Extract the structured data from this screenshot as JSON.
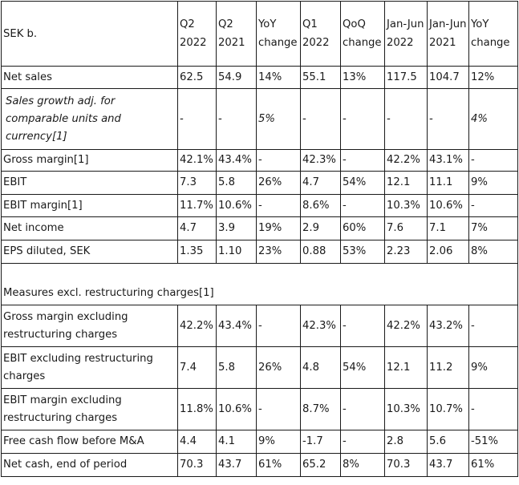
{
  "header": {
    "label": "SEK b.",
    "cols": [
      "Q2 2022",
      "Q2 2021",
      "YoY change",
      "Q1 2022",
      "QoQ change",
      "Jan-Jun 2022",
      "Jan-Jun 2021",
      "YoY change"
    ]
  },
  "rows": [
    {
      "label": "Net sales",
      "values": [
        "62.5",
        "54.9",
        "14%",
        "55.1",
        "13%",
        "117.5",
        "104.7",
        "12%"
      ]
    },
    {
      "label": "Sales growth adj. for comparable units and currency[1]",
      "italic": true,
      "values": [
        "-",
        "-",
        "5%",
        "-",
        "-",
        "-",
        "-",
        "4%"
      ]
    },
    {
      "label": "Gross margin[1]",
      "values": [
        "42.1%",
        "43.4%",
        "-",
        "42.3%",
        "-",
        "42.2%",
        "43.1%",
        "-"
      ]
    },
    {
      "label": "EBIT",
      "values": [
        "7.3",
        "5.8",
        "26%",
        "4.7",
        "54%",
        "12.1",
        "11.1",
        "9%"
      ]
    },
    {
      "label": "EBIT margin[1]",
      "values": [
        "11.7%",
        "10.6%",
        "-",
        "8.6%",
        "-",
        "10.3%",
        "10.6%",
        "-"
      ]
    },
    {
      "label": "Net income",
      "values": [
        "4.7",
        "3.9",
        "19%",
        "2.9",
        "60%",
        "7.6",
        "7.1",
        "7%"
      ]
    },
    {
      "label": "EPS diluted, SEK",
      "values": [
        "1.35",
        "1.10",
        "23%",
        "0.88",
        "53%",
        "2.23",
        "2.06",
        "8%"
      ]
    }
  ],
  "section_title": "Measures excl. restructuring charges[1]",
  "rows2": [
    {
      "label": "Gross margin excluding restructuring charges",
      "values": [
        "42.2%",
        "43.4%",
        "-",
        "42.3%",
        "-",
        "42.2%",
        "43.2%",
        "-"
      ]
    },
    {
      "label": "EBIT excluding restructuring charges",
      "values": [
        "7.4",
        "5.8",
        "26%",
        "4.8",
        "54%",
        "12.1",
        "11.2",
        "9%"
      ]
    },
    {
      "label": "EBIT margin excluding restructuring charges",
      "values": [
        "11.8%",
        "10.6%",
        "-",
        "8.7%",
        "-",
        "10.3%",
        "10.7%",
        "-"
      ]
    },
    {
      "label": "Free cash flow before M&A",
      "values": [
        "4.4",
        "4.1",
        "9%",
        "-1.7",
        "-",
        "2.8",
        "5.6",
        "-51%"
      ]
    },
    {
      "label": "Net cash, end of period",
      "values": [
        "70.3",
        "43.7",
        "61%",
        "65.2",
        "8%",
        "70.3",
        "43.7",
        "61%"
      ]
    }
  ]
}
